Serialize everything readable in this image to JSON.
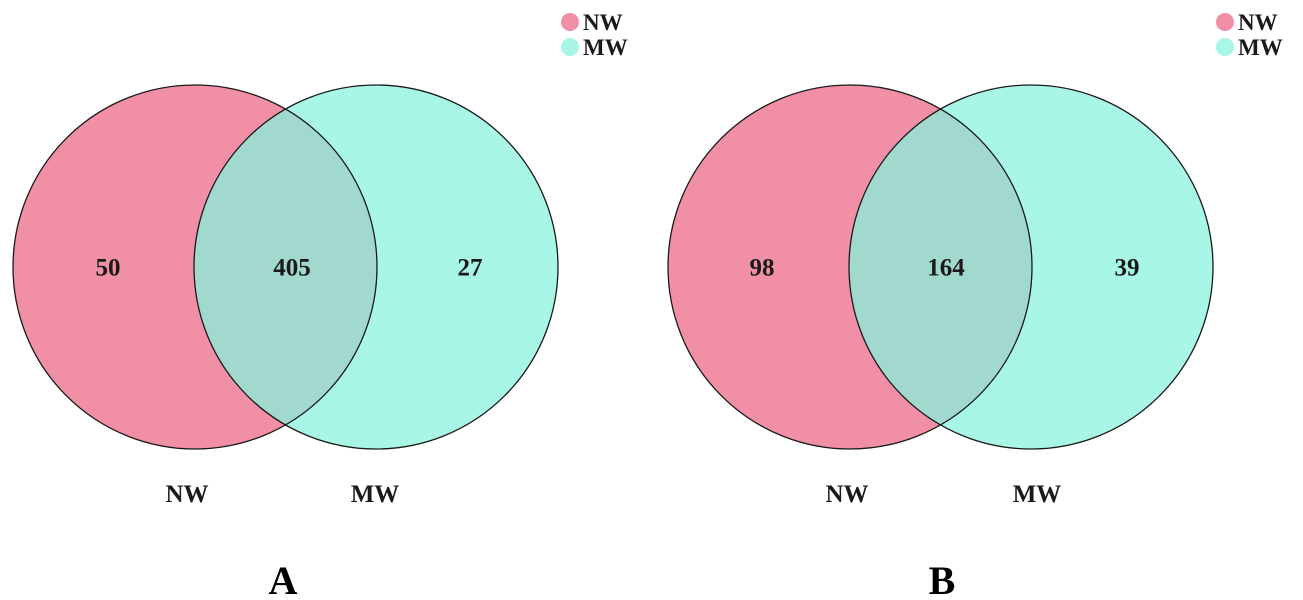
{
  "colors": {
    "nw": "#F08FA6",
    "mw": "#A8F6E6",
    "overlap": "#A2D9CE",
    "outline": "#1a1a1a"
  },
  "panels": [
    {
      "panel_label": "A",
      "legend": [
        {
          "label": "NW",
          "color": "#F08FA6"
        },
        {
          "label": "MW",
          "color": "#A8F6E6"
        }
      ],
      "sets": {
        "left_label": "NW",
        "right_label": "MW"
      },
      "counts": {
        "left_only": "50",
        "overlap": "405",
        "right_only": "27"
      }
    },
    {
      "panel_label": "B",
      "legend": [
        {
          "label": "NW",
          "color": "#F08FA6"
        },
        {
          "label": "MW",
          "color": "#A8F6E6"
        }
      ],
      "sets": {
        "left_label": "NW",
        "right_label": "MW"
      },
      "counts": {
        "left_only": "98",
        "overlap": "164",
        "right_only": "39"
      }
    }
  ]
}
